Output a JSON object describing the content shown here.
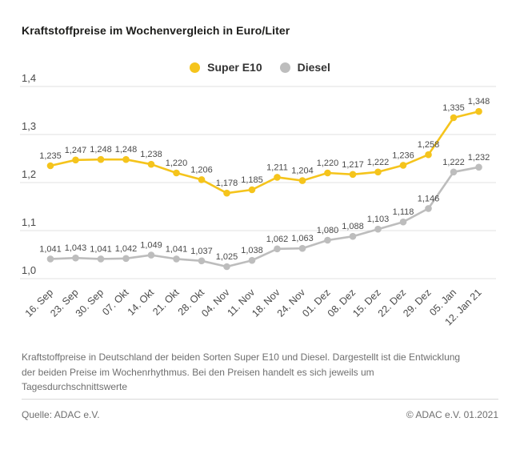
{
  "title": "Kraftstoffpreise im Wochenvergleich in Euro/Liter",
  "legend": {
    "items": [
      {
        "label": "Super E10",
        "color": "#f5c41c"
      },
      {
        "label": "Diesel",
        "color": "#bdbdbd"
      }
    ]
  },
  "chart_data": {
    "type": "line",
    "title": "Kraftstoffpreise im Wochenvergleich in Euro/Liter",
    "categories": [
      "16. Sep",
      "23. Sep",
      "30. Sep",
      "07. Okt",
      "14. Okt",
      "21. Okt",
      "28. Okt",
      "04. Nov",
      "11. Nov",
      "18. Nov",
      "24. Nov",
      "01. Dez",
      "08. Dez",
      "15. Dez",
      "22. Dez",
      "29. Dez",
      "05. Jan",
      "12. Jan 21"
    ],
    "series": [
      {
        "name": "Super E10",
        "color": "#f5c41c",
        "values": [
          1.235,
          1.247,
          1.248,
          1.248,
          1.238,
          1.22,
          1.206,
          1.178,
          1.185,
          1.211,
          1.204,
          1.22,
          1.217,
          1.222,
          1.236,
          1.258,
          1.335,
          1.348
        ]
      },
      {
        "name": "Diesel",
        "color": "#bdbdbd",
        "values": [
          1.041,
          1.043,
          1.041,
          1.042,
          1.049,
          1.041,
          1.037,
          1.025,
          1.038,
          1.062,
          1.063,
          1.08,
          1.088,
          1.103,
          1.118,
          1.146,
          1.222,
          1.232
        ]
      }
    ],
    "xlabel": "",
    "ylabel": "",
    "ylim": [
      1.0,
      1.4
    ],
    "yticks": [
      1.4,
      1.3,
      1.2,
      1.1,
      1.0
    ],
    "grid": true,
    "legend_position": "top-center",
    "value_labels": true,
    "decimal_separator": ","
  },
  "description": "Kraftstoffpreise in Deutschland der beiden Sorten Super E10 und Diesel. Dargestellt ist die Entwicklung der beiden Preise im Wochenrhythmus. Bei den Preisen handelt es sich jeweils um Tagesdurchschnittswerte",
  "footer": {
    "source": "Quelle: ADAC e.V.",
    "copyright": "© ADAC e.V. 01.2021"
  }
}
